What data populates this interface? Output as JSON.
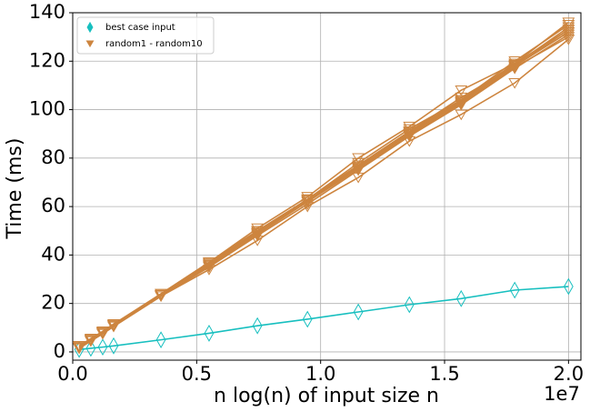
{
  "chart_data": {
    "type": "line",
    "x_label": "n log(n) of input size n",
    "y_label": "Time (ms)",
    "x_offset_label": "1e7",
    "x": [
      0.026,
      0.073,
      0.121,
      0.165,
      0.356,
      0.55,
      0.745,
      0.947,
      1.152,
      1.358,
      1.567,
      1.783,
      2.0
    ],
    "series": [
      {
        "name": "best case input",
        "color": "#17bfbf",
        "marker": "diamond",
        "values": [
          1,
          1.5,
          2,
          2.5,
          5,
          7.7,
          10.8,
          13.5,
          16.5,
          19.5,
          22,
          25.5,
          27
        ]
      },
      {
        "name": "random1 - random10",
        "color": "#cd853f",
        "marker": "triangle-down",
        "runs": [
          [
            2,
            5,
            8,
            11,
            23.5,
            36,
            49,
            62,
            76,
            90,
            103,
            118,
            132
          ],
          [
            2.5,
            5.5,
            8.5,
            11.5,
            24,
            37,
            50,
            63,
            77,
            91,
            104,
            119,
            133
          ],
          [
            1.5,
            4.5,
            7.5,
            10.5,
            23,
            35,
            48,
            61,
            75,
            89,
            102,
            117,
            131
          ],
          [
            2,
            5,
            8,
            11,
            23.5,
            36.5,
            49.5,
            62.5,
            76.5,
            90.5,
            103.5,
            118.5,
            134
          ],
          [
            2,
            5,
            8,
            11,
            23.5,
            35.5,
            48.5,
            62,
            75.5,
            89.5,
            102.5,
            117.5,
            130
          ],
          [
            2.5,
            5,
            8.5,
            11,
            24,
            37,
            51,
            64,
            80,
            93,
            108,
            119,
            136
          ],
          [
            1.5,
            4.5,
            7.5,
            10.5,
            23,
            34,
            46,
            60,
            72,
            87,
            98,
            111,
            129
          ],
          [
            2,
            5.5,
            8,
            11,
            23.5,
            36,
            49,
            63,
            77,
            91,
            105,
            118,
            133
          ],
          [
            2,
            5,
            8,
            11,
            23.5,
            36,
            49,
            62,
            76,
            90,
            103,
            118,
            132
          ],
          [
            2,
            5,
            8,
            11.5,
            23.5,
            36,
            50,
            63,
            78,
            92,
            104,
            120,
            135
          ]
        ]
      }
    ],
    "xlim": [
      0,
      2.05
    ],
    "ylim": [
      -3.4,
      140
    ],
    "xticks": [
      {
        "value": 0,
        "label": "0.0"
      },
      {
        "value": 0.5,
        "label": "0.5"
      },
      {
        "value": 1,
        "label": "1.0"
      },
      {
        "value": 1.5,
        "label": "1.5"
      },
      {
        "value": 2,
        "label": "2.0"
      }
    ],
    "yticks": [
      0,
      20,
      40,
      60,
      80,
      100,
      120,
      140
    ],
    "grid": true,
    "legend": "upper-left"
  }
}
